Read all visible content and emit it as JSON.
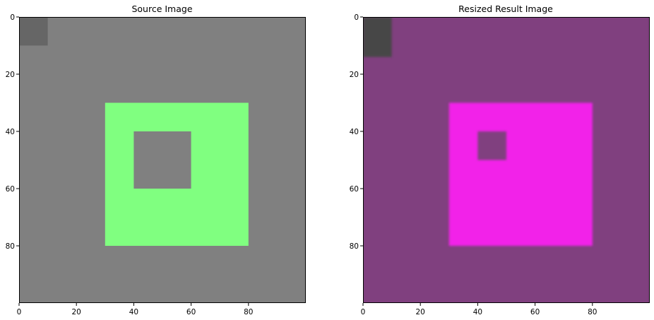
{
  "chart_data": [
    {
      "type": "heatmap",
      "title": "Source Image",
      "xlabel": "",
      "ylabel": "",
      "xlim": [
        0,
        100
      ],
      "ylim": [
        100,
        0
      ],
      "xticks": [
        0,
        20,
        40,
        60,
        80
      ],
      "yticks": [
        0,
        20,
        40,
        60,
        80
      ],
      "background_color": "#808080",
      "regions": [
        {
          "label": "corner",
          "x": [
            0,
            10
          ],
          "y": [
            0,
            10
          ],
          "color": "#666666",
          "blur": 0
        },
        {
          "label": "outer-square",
          "x": [
            30,
            80
          ],
          "y": [
            30,
            80
          ],
          "color": "#80ff80",
          "blur": 0
        },
        {
          "label": "inner-hole",
          "x": [
            40,
            60
          ],
          "y": [
            40,
            60
          ],
          "color": "#808080",
          "blur": 0
        }
      ]
    },
    {
      "type": "heatmap",
      "title": "Resized Result Image",
      "xlabel": "",
      "ylabel": "",
      "xlim": [
        0,
        100
      ],
      "ylim": [
        100,
        0
      ],
      "xticks": [
        0,
        20,
        40,
        60,
        80
      ],
      "yticks": [
        0,
        20,
        40,
        60,
        80
      ],
      "background_color": "#80407f",
      "regions": [
        {
          "label": "corner",
          "x": [
            0,
            10
          ],
          "y": [
            0,
            14
          ],
          "color": "#474747",
          "blur": 1
        },
        {
          "label": "outer-square",
          "x": [
            30,
            80
          ],
          "y": [
            30,
            80
          ],
          "color": "#f222e9",
          "blur": 1
        },
        {
          "label": "inner-hole",
          "x": [
            40,
            50
          ],
          "y": [
            40,
            50
          ],
          "color": "#80407f",
          "blur": 1
        }
      ]
    }
  ]
}
